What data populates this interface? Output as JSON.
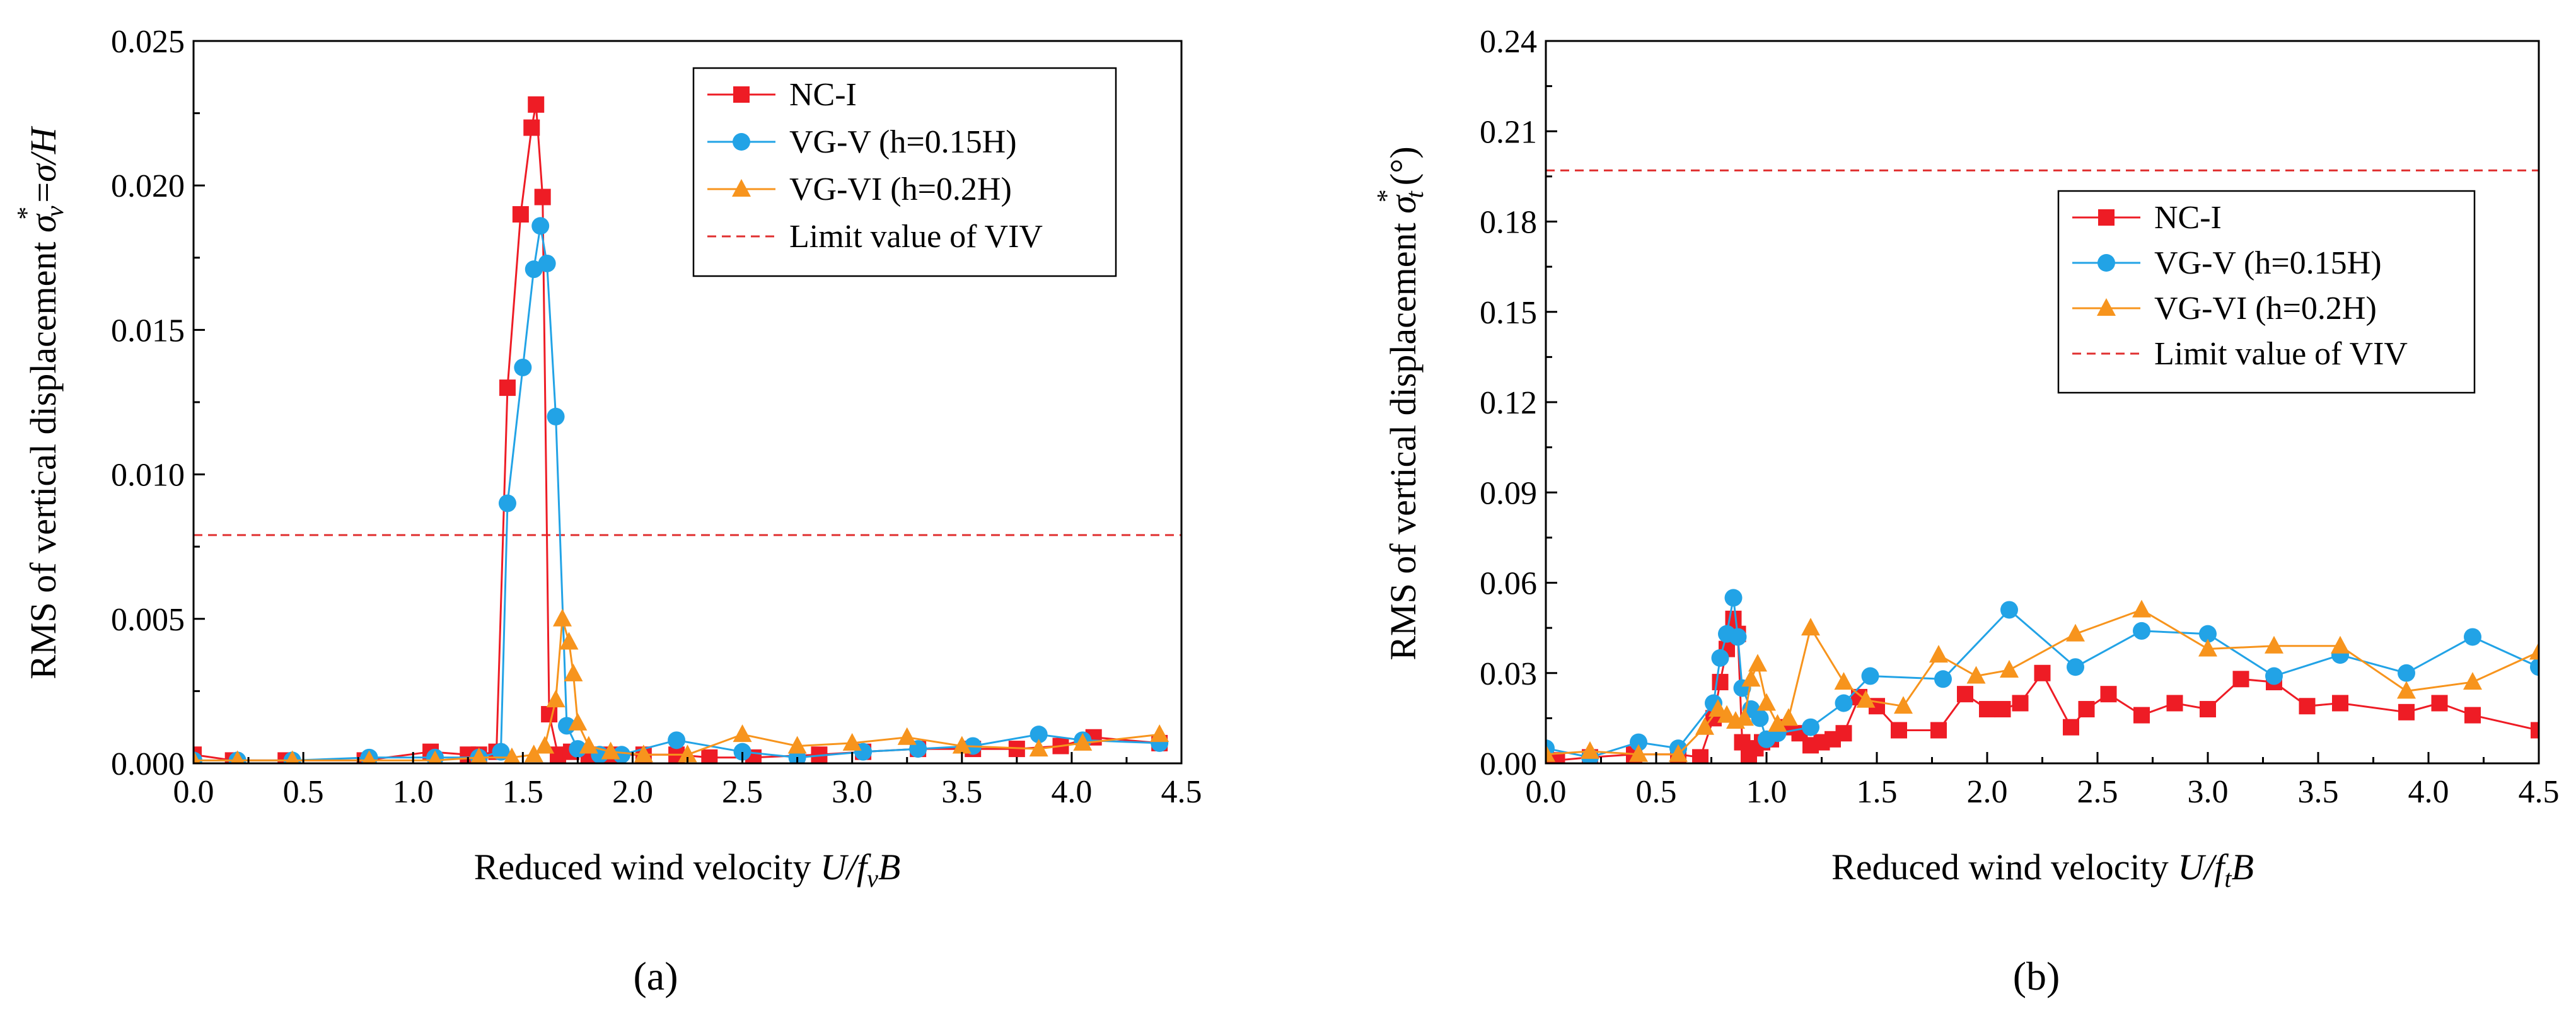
{
  "chart_data": [
    {
      "type": "line",
      "panel_label": "(a)",
      "xlabel": "Reduced wind velocity U/fvB",
      "xlabel_parts": [
        "Reduced wind velocity ",
        "U/f",
        "v",
        "B"
      ],
      "ylabel": "RMS of vertical displacement σv* = σ/H",
      "ylabel_parts": [
        "RMS of vertical displacement ",
        "σ",
        "v",
        "*",
        "=",
        "σ/H"
      ],
      "xlim": [
        0.0,
        4.5
      ],
      "ylim": [
        0.0,
        0.025
      ],
      "xticks": [
        "0.0",
        "0.5",
        "1.0",
        "1.5",
        "2.0",
        "2.5",
        "3.0",
        "3.5",
        "4.0",
        "4.5"
      ],
      "yticks": [
        "0.000",
        "0.005",
        "0.010",
        "0.015",
        "0.020",
        "0.025"
      ],
      "grid": false,
      "legend_position": "top-right",
      "limit_line": {
        "name": "Limit value of VIV",
        "value": 0.0079,
        "color": "#e03030"
      },
      "series": [
        {
          "name": "NC-I",
          "color": "#ee1c25",
          "marker": "square",
          "x": [
            0.0,
            0.18,
            0.42,
            0.78,
            1.08,
            1.25,
            1.3,
            1.38,
            1.43,
            1.49,
            1.54,
            1.56,
            1.59,
            1.62,
            1.66,
            1.72,
            1.8,
            1.9,
            2.05,
            2.2,
            2.35,
            2.55,
            2.85,
            3.05,
            3.3,
            3.55,
            3.75,
            3.95,
            4.1,
            4.4
          ],
          "y": [
            0.0003,
            0.0001,
            0.0001,
            0.0001,
            0.0004,
            0.0003,
            0.0003,
            0.0004,
            0.013,
            0.019,
            0.022,
            0.0228,
            0.0196,
            0.0017,
            0.0003,
            0.0004,
            0.0003,
            0.0003,
            0.0003,
            0.0003,
            0.0002,
            0.0002,
            0.0003,
            0.0004,
            0.0005,
            0.0005,
            0.0005,
            0.0006,
            0.0009,
            0.0007
          ]
        },
        {
          "name": "VG-V (h=0.15H)",
          "color": "#22a3e6",
          "marker": "circle",
          "x": [
            0.0,
            0.2,
            0.45,
            0.8,
            1.1,
            1.3,
            1.4,
            1.43,
            1.5,
            1.55,
            1.58,
            1.61,
            1.65,
            1.7,
            1.75,
            1.85,
            1.95,
            2.2,
            2.5,
            2.75,
            3.05,
            3.3,
            3.55,
            3.85,
            4.05,
            4.4
          ],
          "y": [
            0.0001,
            0.0001,
            0.0001,
            0.0002,
            0.0002,
            0.0002,
            0.0004,
            0.009,
            0.0137,
            0.0171,
            0.0186,
            0.0173,
            0.012,
            0.0013,
            0.0005,
            0.0003,
            0.0003,
            0.0008,
            0.0004,
            0.0002,
            0.0004,
            0.0005,
            0.0006,
            0.001,
            0.0008,
            0.0007
          ]
        },
        {
          "name": "VG-VI (h=0.2H)",
          "color": "#f7941d",
          "marker": "triangle",
          "x": [
            0.0,
            0.2,
            0.45,
            0.8,
            1.1,
            1.3,
            1.45,
            1.55,
            1.6,
            1.65,
            1.68,
            1.71,
            1.73,
            1.75,
            1.8,
            1.9,
            2.05,
            2.25,
            2.5,
            2.75,
            3.0,
            3.25,
            3.5,
            3.85,
            4.05,
            4.4
          ],
          "y": [
            0.0001,
            0.0001,
            0.0001,
            0.0001,
            0.0001,
            0.0002,
            0.0002,
            0.0003,
            0.0006,
            0.0022,
            0.005,
            0.0042,
            0.0031,
            0.0014,
            0.0006,
            0.0004,
            0.0003,
            0.0003,
            0.001,
            0.0006,
            0.0007,
            0.0009,
            0.0006,
            0.0005,
            0.0007,
            0.001
          ]
        }
      ]
    },
    {
      "type": "line",
      "panel_label": "(b)",
      "xlabel": "Reduced wind velocity U/ftB",
      "xlabel_parts": [
        "Reduced wind velocity ",
        "U/f",
        "t",
        "B"
      ],
      "ylabel": "RMS of vertical displacement σt*(°)",
      "ylabel_parts": [
        "RMS of vertical displacement ",
        "σ",
        "t",
        "*",
        "(°)"
      ],
      "xlim": [
        0.0,
        4.5
      ],
      "ylim": [
        0.0,
        0.24
      ],
      "xticks": [
        "0.0",
        "0.5",
        "1.0",
        "1.5",
        "2.0",
        "2.5",
        "3.0",
        "3.5",
        "4.0",
        "4.5"
      ],
      "yticks": [
        "0.00",
        "0.03",
        "0.06",
        "0.09",
        "0.12",
        "0.15",
        "0.18",
        "0.21",
        "0.24"
      ],
      "grid": false,
      "legend_position": "top-right",
      "limit_line": {
        "name": "Limit value of VIV",
        "value": 0.197,
        "color": "#e03030"
      },
      "series": [
        {
          "name": "NC-I",
          "color": "#ee1c25",
          "marker": "square",
          "x": [
            0.0,
            0.05,
            0.2,
            0.4,
            0.6,
            0.7,
            0.76,
            0.79,
            0.82,
            0.85,
            0.87,
            0.89,
            0.92,
            0.95,
            0.98,
            1.02,
            1.08,
            1.15,
            1.2,
            1.25,
            1.3,
            1.35,
            1.42,
            1.5,
            1.6,
            1.78,
            1.9,
            2.0,
            2.07,
            2.15,
            2.25,
            2.38,
            2.45,
            2.55,
            2.7,
            2.85,
            3.0,
            3.15,
            3.3,
            3.45,
            3.6,
            3.9,
            4.05,
            4.2,
            4.5
          ],
          "y": [
            0.002,
            0.001,
            0.002,
            0.003,
            0.003,
            0.002,
            0.015,
            0.027,
            0.038,
            0.048,
            0.043,
            0.007,
            0.003,
            0.005,
            0.007,
            0.008,
            0.012,
            0.01,
            0.006,
            0.007,
            0.008,
            0.01,
            0.022,
            0.019,
            0.011,
            0.011,
            0.023,
            0.018,
            0.018,
            0.02,
            0.03,
            0.012,
            0.018,
            0.023,
            0.016,
            0.02,
            0.018,
            0.028,
            0.027,
            0.019,
            0.02,
            0.017,
            0.02,
            0.016,
            0.011
          ]
        },
        {
          "name": "VG-V (h=0.15H)",
          "color": "#22a3e6",
          "marker": "circle",
          "x": [
            0.0,
            0.2,
            0.42,
            0.6,
            0.76,
            0.79,
            0.82,
            0.85,
            0.87,
            0.89,
            0.93,
            0.97,
            1.0,
            1.05,
            1.2,
            1.35,
            1.47,
            1.8,
            2.1,
            2.4,
            2.7,
            3.0,
            3.3,
            3.6,
            3.9,
            4.2,
            4.5
          ],
          "y": [
            0.005,
            0.002,
            0.007,
            0.005,
            0.02,
            0.035,
            0.043,
            0.055,
            0.042,
            0.025,
            0.018,
            0.015,
            0.008,
            0.01,
            0.012,
            0.02,
            0.029,
            0.028,
            0.051,
            0.032,
            0.044,
            0.043,
            0.029,
            0.036,
            0.03,
            0.042,
            0.032
          ]
        },
        {
          "name": "VG-VI (h=0.2H)",
          "color": "#f7941d",
          "marker": "triangle",
          "x": [
            0.0,
            0.2,
            0.42,
            0.6,
            0.72,
            0.78,
            0.82,
            0.86,
            0.9,
            0.93,
            0.96,
            1.0,
            1.05,
            1.1,
            1.2,
            1.35,
            1.45,
            1.62,
            1.78,
            1.95,
            2.1,
            2.4,
            2.7,
            3.0,
            3.3,
            3.6,
            3.9,
            4.2,
            4.5
          ],
          "y": [
            0.003,
            0.004,
            0.003,
            0.003,
            0.012,
            0.018,
            0.016,
            0.014,
            0.015,
            0.028,
            0.033,
            0.02,
            0.013,
            0.015,
            0.045,
            0.027,
            0.021,
            0.019,
            0.036,
            0.029,
            0.031,
            0.043,
            0.051,
            0.038,
            0.039,
            0.039,
            0.024,
            0.027,
            0.037
          ]
        }
      ]
    }
  ]
}
